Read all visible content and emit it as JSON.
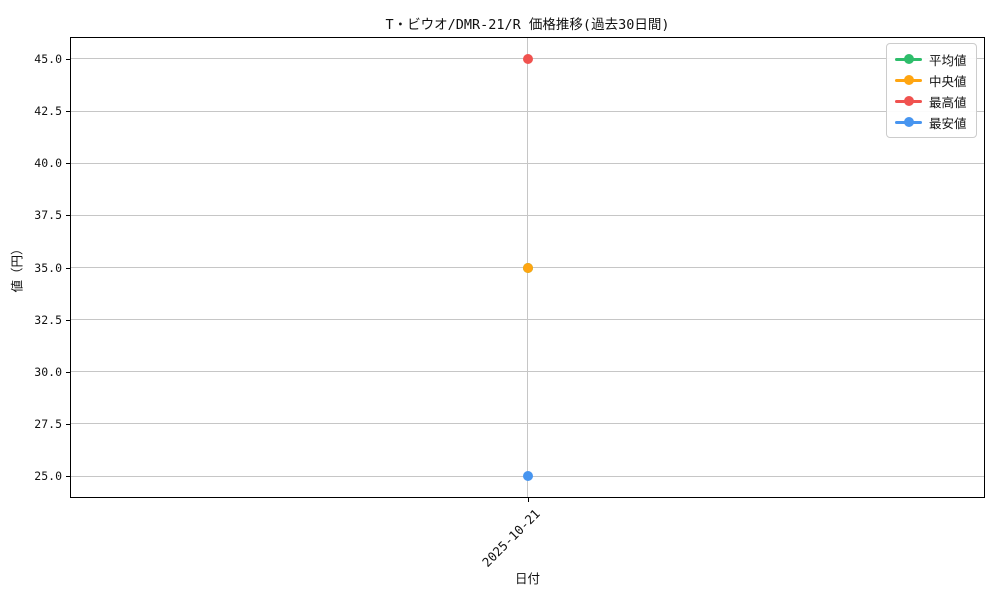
{
  "chart_data": {
    "type": "line",
    "title": "T・ビウオ/DMR-21/R 価格推移(過去30日間)",
    "xlabel": "日付",
    "ylabel": "値（円）",
    "x": [
      "2025-10-21"
    ],
    "xtick_rotation_deg": 45,
    "series": [
      {
        "key": "mean",
        "name": "平均値",
        "color": "#2ebd6b",
        "values": [
          35.0
        ]
      },
      {
        "key": "median",
        "name": "中央値",
        "color": "#ffa511",
        "values": [
          35.0
        ]
      },
      {
        "key": "max",
        "name": "最高値",
        "color": "#f0524f",
        "values": [
          45.0
        ]
      },
      {
        "key": "min",
        "name": "最安値",
        "color": "#4795f0",
        "values": [
          25.0
        ]
      }
    ],
    "ylim": [
      24,
      46
    ],
    "yticks": [
      "25.0",
      "27.5",
      "30.0",
      "32.5",
      "35.0",
      "37.5",
      "40.0",
      "42.5",
      "45.0"
    ],
    "grid": true,
    "legend_position": "upper right",
    "colors": {
      "grid": "#c6c6c6",
      "spine": "#000000",
      "text": "#111111",
      "background": "#ffffff"
    }
  }
}
